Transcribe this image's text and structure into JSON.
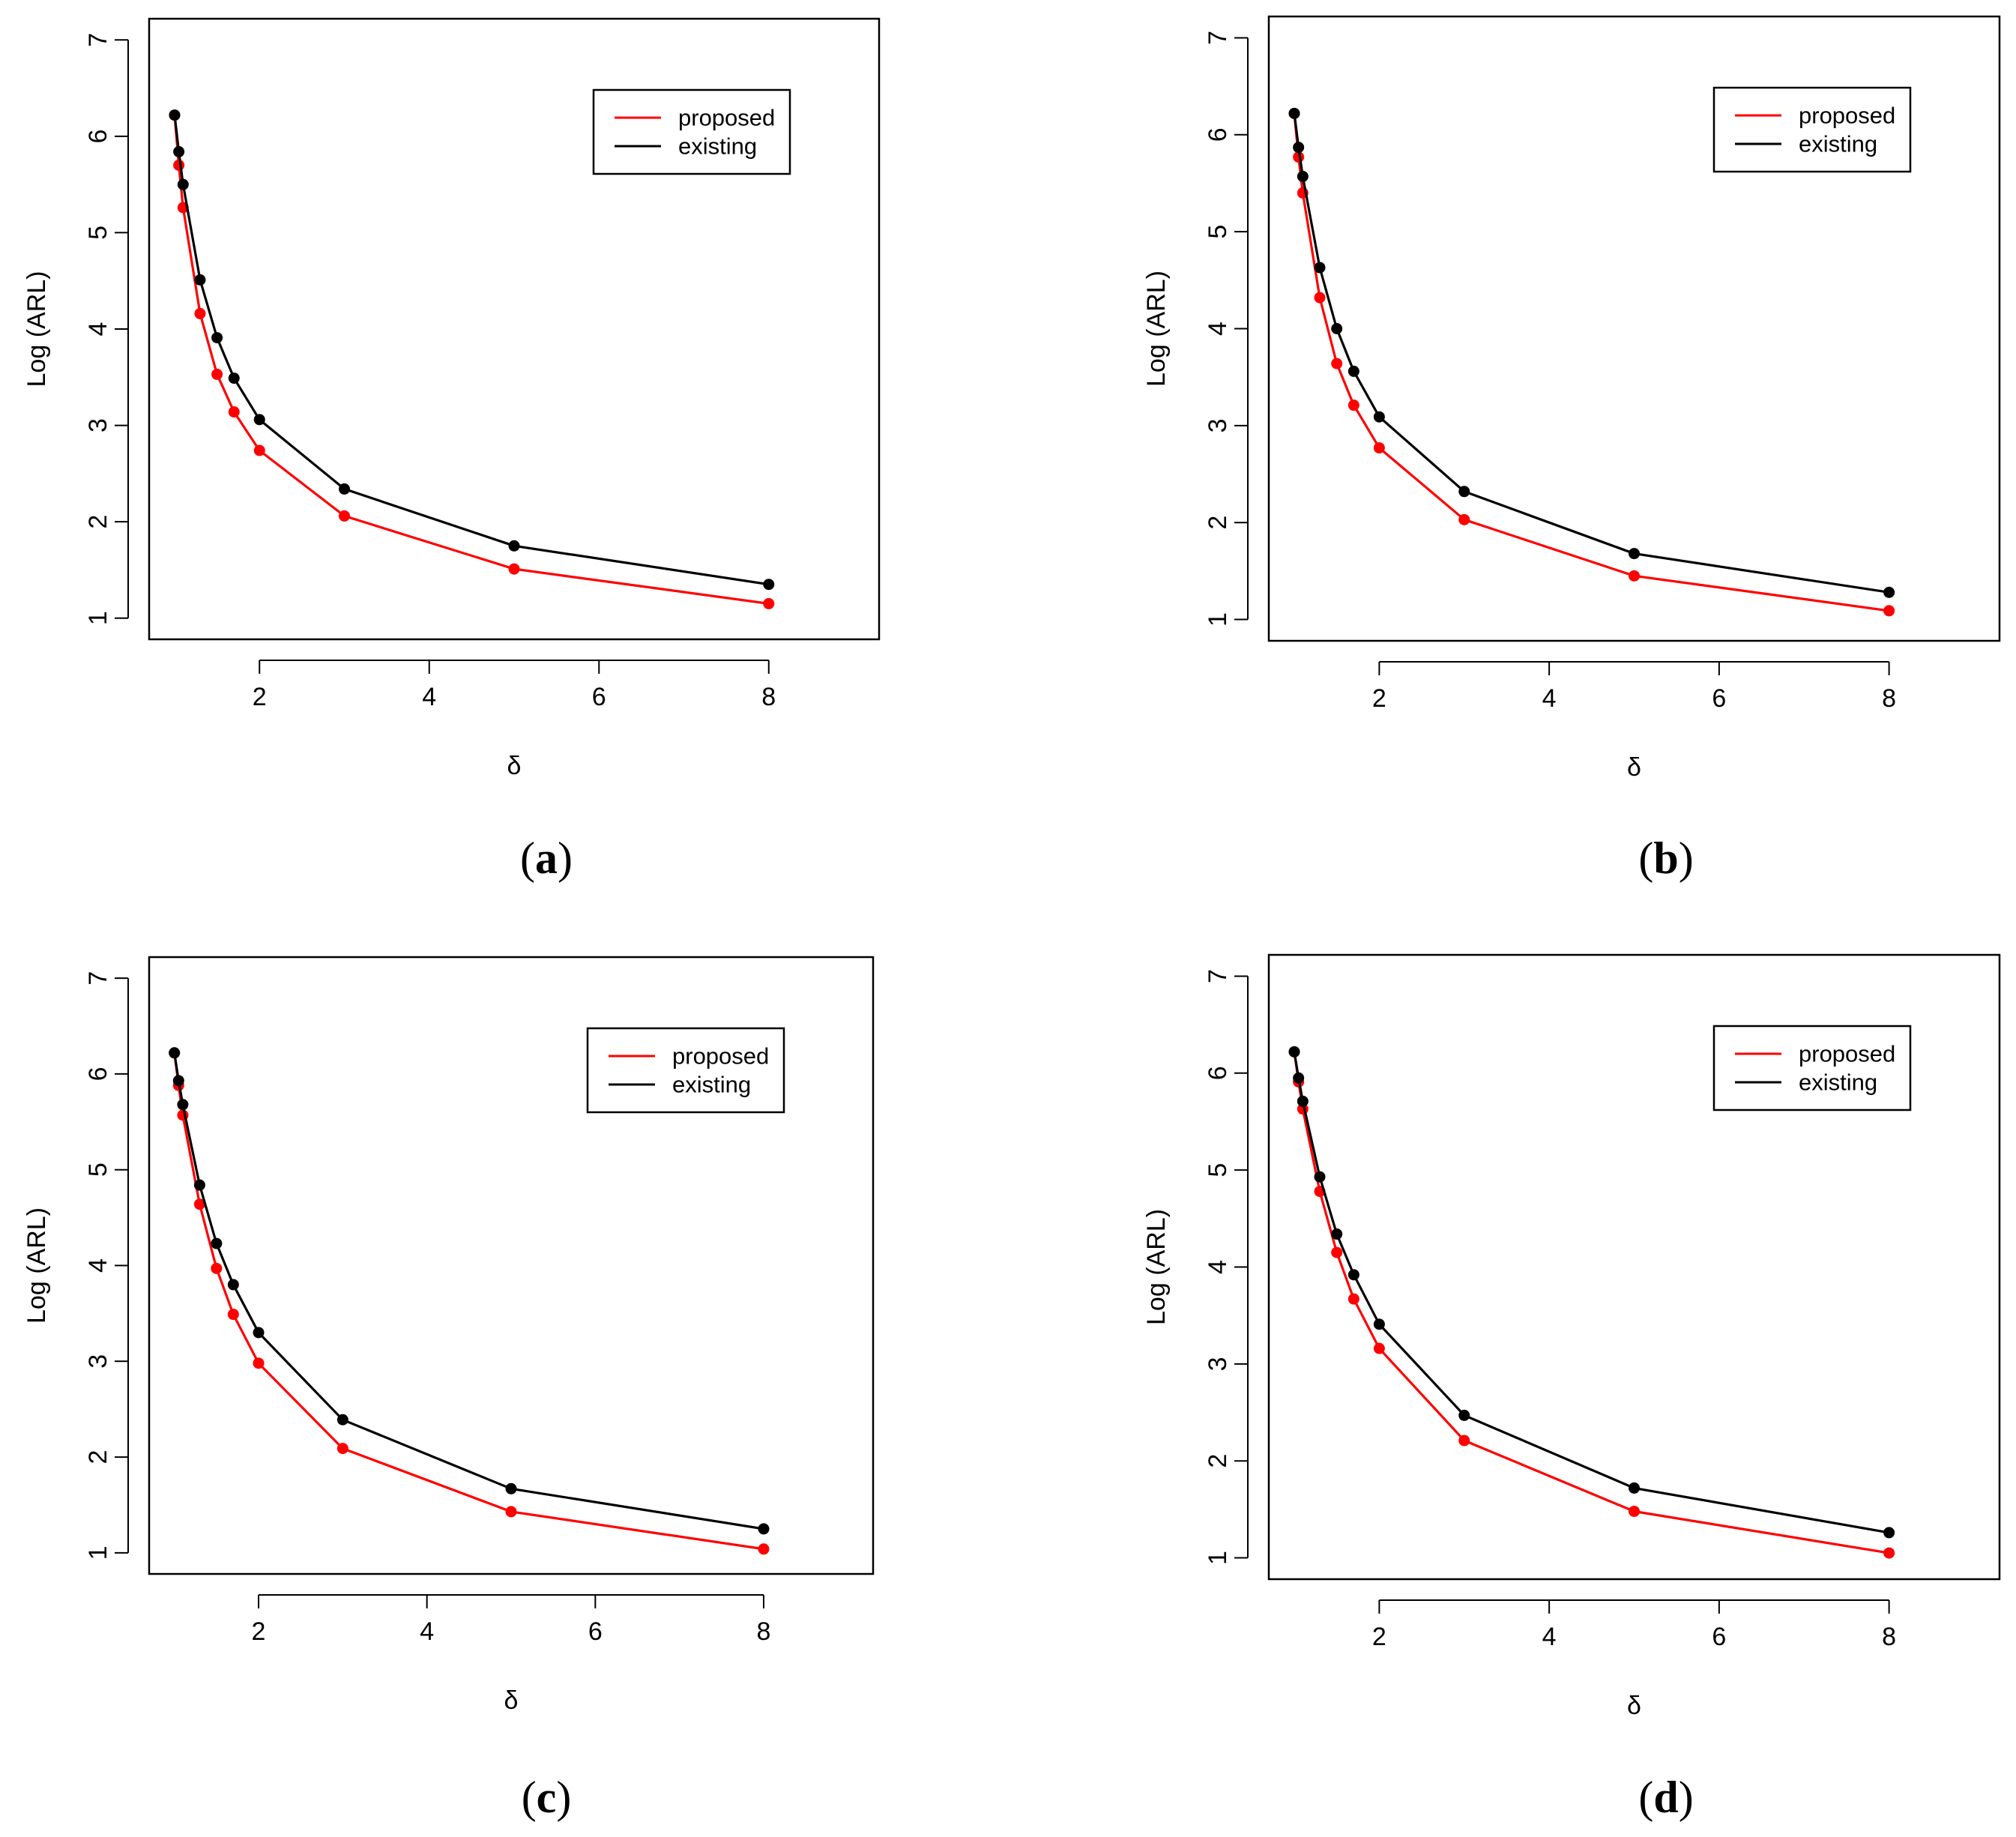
{
  "figure": {
    "panels_count": 4
  },
  "chart_data": [
    {
      "panel": "a",
      "caption_letter": "a",
      "type": "line",
      "xlabel": "δ",
      "ylabel": "Log (ARL)",
      "xlim": [
        0.7,
        9.3
      ],
      "ylim": [
        0.78,
        7.22
      ],
      "xticks": [
        2,
        4,
        6,
        8
      ],
      "yticks": [
        1,
        2,
        3,
        4,
        5,
        6,
        7
      ],
      "legend": {
        "position": "top-right",
        "entries": [
          "proposed",
          "existing"
        ]
      },
      "x": [
        1.0,
        1.05,
        1.1,
        1.3,
        1.5,
        1.7,
        2.0,
        3.0,
        5.0,
        8.0
      ],
      "series": [
        {
          "name": "proposed",
          "color": "#ff0000",
          "values": [
            6.22,
            5.7,
            5.26,
            4.16,
            3.53,
            3.14,
            2.74,
            2.06,
            1.51,
            1.15
          ]
        },
        {
          "name": "existing",
          "color": "#000000",
          "values": [
            6.22,
            5.84,
            5.5,
            4.51,
            3.91,
            3.49,
            3.06,
            2.34,
            1.75,
            1.35
          ]
        }
      ]
    },
    {
      "panel": "b",
      "caption_letter": "b",
      "type": "line",
      "xlabel": "δ",
      "ylabel": "Log (ARL)",
      "xlim": [
        0.7,
        9.3
      ],
      "ylim": [
        0.78,
        7.22
      ],
      "xticks": [
        2,
        4,
        6,
        8
      ],
      "yticks": [
        1,
        2,
        3,
        4,
        5,
        6,
        7
      ],
      "legend": {
        "position": "top-right",
        "entries": [
          "proposed",
          "existing"
        ]
      },
      "x": [
        1.0,
        1.05,
        1.1,
        1.3,
        1.5,
        1.7,
        2.0,
        3.0,
        5.0,
        8.0
      ],
      "series": [
        {
          "name": "proposed",
          "color": "#ff0000",
          "values": [
            6.22,
            5.77,
            5.4,
            4.32,
            3.64,
            3.21,
            2.77,
            2.03,
            1.45,
            1.09
          ]
        },
        {
          "name": "existing",
          "color": "#000000",
          "values": [
            6.22,
            5.87,
            5.57,
            4.63,
            4.0,
            3.56,
            3.09,
            2.32,
            1.68,
            1.28
          ]
        }
      ]
    },
    {
      "panel": "c",
      "caption_letter": "c",
      "type": "line",
      "xlabel": "δ",
      "ylabel": "Log (ARL)",
      "xlim": [
        0.7,
        9.3
      ],
      "ylim": [
        0.78,
        7.22
      ],
      "xticks": [
        2,
        4,
        6,
        8
      ],
      "yticks": [
        1,
        2,
        3,
        4,
        5,
        6,
        7
      ],
      "legend": {
        "position": "top-right",
        "entries": [
          "proposed",
          "existing"
        ]
      },
      "x": [
        1.0,
        1.05,
        1.1,
        1.3,
        1.5,
        1.7,
        2.0,
        3.0,
        5.0,
        8.0
      ],
      "series": [
        {
          "name": "proposed",
          "color": "#ff0000",
          "values": [
            6.22,
            5.88,
            5.57,
            4.64,
            3.97,
            3.49,
            2.98,
            2.09,
            1.43,
            1.04
          ]
        },
        {
          "name": "existing",
          "color": "#000000",
          "values": [
            6.22,
            5.93,
            5.68,
            4.84,
            4.23,
            3.8,
            3.3,
            2.39,
            1.67,
            1.25
          ]
        }
      ]
    },
    {
      "panel": "d",
      "caption_letter": "d",
      "type": "line",
      "xlabel": "δ",
      "ylabel": "Log (ARL)",
      "xlim": [
        0.7,
        9.3
      ],
      "ylim": [
        0.78,
        7.22
      ],
      "xticks": [
        2,
        4,
        6,
        8
      ],
      "yticks": [
        1,
        2,
        3,
        4,
        5,
        6,
        7
      ],
      "legend": {
        "position": "top-right",
        "entries": [
          "proposed",
          "existing"
        ]
      },
      "x": [
        1.0,
        1.05,
        1.1,
        1.3,
        1.5,
        1.7,
        2.0,
        3.0,
        5.0,
        8.0
      ],
      "series": [
        {
          "name": "proposed",
          "color": "#ff0000",
          "values": [
            6.22,
            5.91,
            5.63,
            4.78,
            4.15,
            3.67,
            3.16,
            2.21,
            1.48,
            1.05
          ]
        },
        {
          "name": "existing",
          "color": "#000000",
          "values": [
            6.22,
            5.95,
            5.71,
            4.93,
            4.34,
            3.92,
            3.41,
            2.47,
            1.72,
            1.26
          ]
        }
      ]
    }
  ]
}
